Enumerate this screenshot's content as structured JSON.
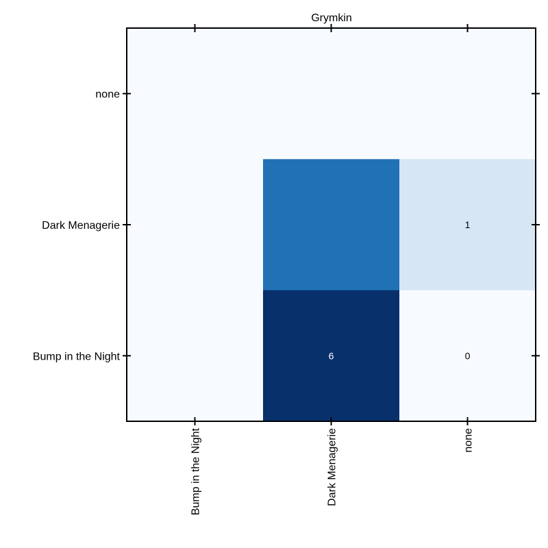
{
  "chart_data": {
    "type": "heatmap",
    "title": "Grymkin",
    "xlabel": "",
    "ylabel": "",
    "x_categories": [
      "Bump in the Night",
      "Dark Menagerie",
      "none"
    ],
    "y_categories_top_to_bottom": [
      "none",
      "Dark Menagerie",
      "Bump in the Night"
    ],
    "colormap": "Blues",
    "value_range": [
      0,
      6
    ],
    "grid": false,
    "cells": [
      {
        "row": "none",
        "col": "Bump in the Night",
        "value": 0,
        "label": ""
      },
      {
        "row": "none",
        "col": "Dark Menagerie",
        "value": 0,
        "label": ""
      },
      {
        "row": "none",
        "col": "none",
        "value": 0,
        "label": ""
      },
      {
        "row": "Dark Menagerie",
        "col": "Bump in the Night",
        "value": 0,
        "label": ""
      },
      {
        "row": "Dark Menagerie",
        "col": "Dark Menagerie",
        "value": 4.5,
        "label": ""
      },
      {
        "row": "Dark Menagerie",
        "col": "none",
        "value": 1,
        "label": "1"
      },
      {
        "row": "Bump in the Night",
        "col": "Bump in the Night",
        "value": 0,
        "label": ""
      },
      {
        "row": "Bump in the Night",
        "col": "Dark Menagerie",
        "value": 6,
        "label": "6"
      },
      {
        "row": "Bump in the Night",
        "col": "none",
        "value": 0,
        "label": "0"
      }
    ]
  }
}
